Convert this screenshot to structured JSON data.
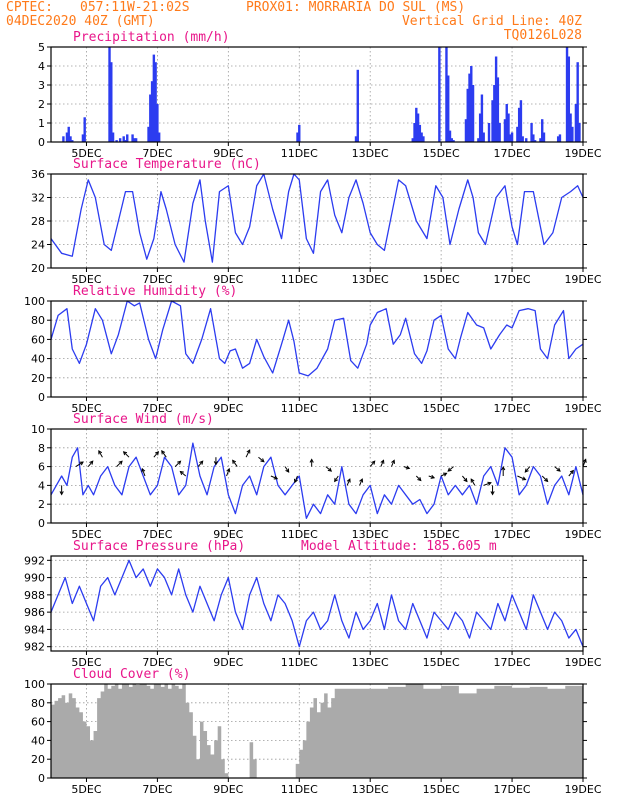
{
  "header": {
    "line1_left": "CPTEC:",
    "line1_coords": "057:11W-21:02S",
    "line1_station": "PROX01: MORRARIA DO SUL (MS)",
    "line2_left": "04DEC2020 40Z (GMT)",
    "line2_right": "Vertical Grid Line: 40Z",
    "line3_right": "TQ0126L028",
    "color": "#ff7a1a"
  },
  "colors": {
    "title": "#e8168a",
    "line": "#2c3cf0",
    "bar": "#2c3cf0",
    "cloud": "#aaaaaa",
    "arrow": "#000000",
    "grid": "#9a9a9a"
  },
  "chart_data": [
    {
      "panel": "precipitation",
      "type": "bar",
      "title": "Precipitation (mm/h)",
      "x_tick_labels": [
        "5DEC",
        "7DEC",
        "9DEC",
        "11DEC",
        "13DEC",
        "15DEC",
        "17DEC",
        "19DEC"
      ],
      "ylim": [
        0,
        5
      ],
      "yticks": [
        0,
        1,
        2,
        3,
        4,
        5
      ],
      "grid": true,
      "x": [
        4.35,
        4.45,
        4.5,
        4.55,
        4.6,
        4.9,
        4.95,
        5.65,
        5.7,
        5.75,
        5.85,
        5.95,
        6.05,
        6.1,
        6.15,
        6.3,
        6.35,
        6.4,
        6.75,
        6.8,
        6.85,
        6.9,
        6.95,
        7.0,
        7.05,
        10.95,
        11.0,
        12.6,
        12.65,
        14.2,
        14.25,
        14.3,
        14.35,
        14.4,
        14.45,
        14.5,
        14.95,
        15.15,
        15.2,
        15.25,
        15.3,
        15.35,
        15.7,
        15.75,
        15.8,
        15.85,
        15.9,
        16.05,
        16.1,
        16.15,
        16.2,
        16.35,
        16.45,
        16.5,
        16.55,
        16.6,
        16.65,
        16.8,
        16.85,
        16.9,
        16.95,
        17.0,
        17.15,
        17.2,
        17.25,
        17.3,
        17.4,
        17.55,
        17.6,
        17.65,
        17.8,
        17.85,
        17.9,
        18.3,
        18.35,
        18.55,
        18.6,
        18.65,
        18.7,
        18.8,
        18.85,
        18.9
      ],
      "values": [
        0.3,
        0.5,
        0.8,
        0.3,
        0.1,
        0.4,
        1.3,
        5.0,
        4.2,
        0.5,
        0.1,
        0.2,
        0.3,
        0.1,
        0.4,
        0.4,
        0.2,
        0.2,
        0.8,
        2.5,
        3.2,
        4.6,
        4.2,
        2.0,
        0.5,
        0.5,
        0.9,
        0.3,
        3.8,
        0.2,
        1.0,
        1.8,
        1.5,
        0.9,
        0.5,
        0.3,
        5.0,
        5.0,
        3.5,
        0.6,
        0.2,
        0.1,
        1.2,
        2.8,
        3.6,
        4.0,
        3.0,
        0.2,
        1.5,
        2.5,
        0.5,
        1.0,
        2.2,
        3.0,
        4.5,
        3.4,
        1.0,
        1.2,
        2.0,
        1.5,
        0.4,
        0.5,
        0.8,
        1.8,
        2.2,
        0.3,
        0.2,
        1.0,
        0.4,
        0.1,
        0.2,
        1.2,
        0.5,
        0.3,
        0.4,
        5.0,
        4.5,
        1.5,
        0.8,
        2.0,
        4.2,
        1.0
      ]
    },
    {
      "panel": "temperature",
      "type": "line",
      "title": "Surface Temperature (nC)",
      "x_tick_labels": [
        "5DEC",
        "7DEC",
        "9DEC",
        "11DEC",
        "13DEC",
        "15DEC",
        "17DEC",
        "19DEC"
      ],
      "ylim": [
        20,
        36
      ],
      "yticks": [
        20,
        24,
        28,
        32,
        36
      ],
      "grid": true,
      "x": [
        4.0,
        4.3,
        4.6,
        4.85,
        5.05,
        5.25,
        5.5,
        5.7,
        5.9,
        6.1,
        6.3,
        6.5,
        6.7,
        6.9,
        7.1,
        7.25,
        7.5,
        7.75,
        8.0,
        8.2,
        8.35,
        8.55,
        8.75,
        9.0,
        9.2,
        9.4,
        9.6,
        9.8,
        10.0,
        10.25,
        10.5,
        10.7,
        10.85,
        11.0,
        11.2,
        11.4,
        11.6,
        11.8,
        12.0,
        12.2,
        12.4,
        12.6,
        12.8,
        13.0,
        13.2,
        13.4,
        13.6,
        13.8,
        14.0,
        14.3,
        14.6,
        14.85,
        15.05,
        15.25,
        15.5,
        15.75,
        15.9,
        16.05,
        16.25,
        16.55,
        16.8,
        17.0,
        17.15,
        17.35,
        17.6,
        17.9,
        18.15,
        18.4,
        18.65,
        18.85,
        19.0
      ],
      "values": [
        25,
        22.5,
        22,
        30,
        35,
        32,
        24,
        23,
        28,
        33,
        33,
        26,
        21.5,
        25,
        33,
        30,
        24,
        21,
        31,
        35,
        28,
        21,
        33,
        34,
        26,
        24,
        27,
        34,
        36,
        30,
        25,
        33,
        36,
        35,
        25,
        22.5,
        33,
        35,
        29,
        26,
        32,
        35,
        31,
        26,
        24,
        23,
        29,
        35,
        34,
        28,
        25,
        34,
        32,
        24,
        30,
        35,
        32,
        26,
        24,
        32,
        34,
        27,
        24,
        33,
        33,
        24,
        26,
        32,
        33,
        34,
        32
      ]
    },
    {
      "panel": "humidity",
      "type": "line",
      "title": "Relative Humidity (%)",
      "x_tick_labels": [
        "5DEC",
        "7DEC",
        "9DEC",
        "11DEC",
        "13DEC",
        "15DEC",
        "17DEC",
        "19DEC"
      ],
      "ylim": [
        0,
        100
      ],
      "yticks": [
        0,
        20,
        40,
        60,
        80,
        100
      ],
      "grid": true,
      "x": [
        4.0,
        4.2,
        4.45,
        4.6,
        4.8,
        5.0,
        5.25,
        5.45,
        5.7,
        5.9,
        6.15,
        6.35,
        6.5,
        6.75,
        6.95,
        7.15,
        7.4,
        7.65,
        7.8,
        8.0,
        8.25,
        8.5,
        8.75,
        8.9,
        9.05,
        9.2,
        9.4,
        9.6,
        9.8,
        10.0,
        10.25,
        10.5,
        10.7,
        10.85,
        11.0,
        11.25,
        11.5,
        11.65,
        11.8,
        12.0,
        12.25,
        12.45,
        12.65,
        12.9,
        13.0,
        13.2,
        13.45,
        13.65,
        13.85,
        14.0,
        14.25,
        14.45,
        14.6,
        14.8,
        15.0,
        15.2,
        15.4,
        15.55,
        15.75,
        16.0,
        16.2,
        16.4,
        16.65,
        16.85,
        17.0,
        17.2,
        17.45,
        17.65,
        17.8,
        18.0,
        18.2,
        18.45,
        18.6,
        18.8,
        19.0
      ],
      "values": [
        60,
        85,
        92,
        50,
        35,
        55,
        92,
        80,
        45,
        65,
        100,
        95,
        98,
        60,
        40,
        70,
        100,
        95,
        45,
        35,
        60,
        92,
        40,
        35,
        48,
        50,
        30,
        35,
        60,
        42,
        25,
        55,
        80,
        58,
        25,
        22,
        30,
        40,
        50,
        80,
        82,
        38,
        30,
        55,
        75,
        88,
        92,
        55,
        65,
        82,
        45,
        35,
        48,
        80,
        85,
        50,
        40,
        62,
        88,
        75,
        72,
        50,
        65,
        75,
        72,
        90,
        92,
        90,
        50,
        40,
        75,
        90,
        40,
        50,
        55
      ]
    },
    {
      "panel": "wind",
      "type": "line",
      "title": "Surface Wind (m/s)",
      "x_tick_labels": [
        "5DEC",
        "7DEC",
        "9DEC",
        "11DEC",
        "13DEC",
        "15DEC",
        "17DEC",
        "19DEC"
      ],
      "ylim": [
        0,
        10
      ],
      "yticks": [
        0,
        2,
        4,
        6,
        8,
        10
      ],
      "grid": true,
      "x": [
        4.0,
        4.15,
        4.3,
        4.45,
        4.6,
        4.75,
        4.9,
        5.05,
        5.2,
        5.4,
        5.6,
        5.8,
        6.0,
        6.2,
        6.4,
        6.6,
        6.8,
        7.0,
        7.2,
        7.4,
        7.6,
        7.8,
        8.0,
        8.2,
        8.4,
        8.6,
        8.8,
        9.0,
        9.2,
        9.4,
        9.6,
        9.8,
        10.0,
        10.2,
        10.4,
        10.6,
        10.8,
        11.0,
        11.2,
        11.4,
        11.6,
        11.8,
        12.0,
        12.2,
        12.4,
        12.6,
        12.8,
        13.0,
        13.2,
        13.4,
        13.6,
        13.8,
        14.0,
        14.2,
        14.4,
        14.6,
        14.8,
        15.0,
        15.2,
        15.4,
        15.6,
        15.8,
        16.0,
        16.2,
        16.4,
        16.6,
        16.8,
        17.0,
        17.2,
        17.4,
        17.6,
        17.8,
        18.0,
        18.2,
        18.4,
        18.6,
        18.8,
        19.0
      ],
      "values": [
        3,
        4,
        5,
        4,
        7,
        8,
        3,
        4,
        3,
        5,
        6,
        4,
        3,
        6,
        7,
        5,
        3,
        4,
        7,
        6,
        3,
        4,
        8.5,
        5,
        3,
        6,
        7,
        3,
        1,
        4,
        5,
        3,
        6,
        7,
        4,
        3,
        4,
        5,
        0.5,
        2,
        1,
        3,
        2,
        6,
        2,
        1,
        3,
        4,
        1,
        3,
        2,
        4,
        3,
        2,
        2.5,
        1,
        2,
        5,
        3,
        4,
        3,
        4,
        2,
        5,
        6,
        4,
        8,
        7,
        3,
        4,
        6,
        5,
        2,
        4,
        5,
        3,
        6,
        3
      ],
      "arrows_x": [
        4.3,
        4.7,
        5.05,
        5.45,
        5.85,
        6.2,
        6.65,
        6.9,
        7.25,
        7.5,
        7.8,
        8.15,
        8.65,
        8.95,
        9.25,
        9.5,
        9.85,
        10.2,
        10.6,
        10.95,
        11.35,
        11.75,
        12.1,
        12.35,
        12.7,
        13.0,
        13.3,
        13.6,
        13.95,
        14.3,
        14.65,
        15.0,
        15.35,
        15.6,
        15.95,
        16.2,
        16.45,
        16.75,
        17.15,
        17.5,
        17.85,
        18.2,
        18.6,
        19.0
      ],
      "arrows_y": [
        4,
        6,
        6,
        7,
        6,
        7,
        5,
        7,
        7,
        6,
        5,
        6,
        7,
        5,
        6,
        7,
        7,
        5,
        6,
        5,
        6,
        6,
        5,
        4,
        4,
        6,
        6,
        6,
        6,
        5,
        5,
        5,
        6,
        5,
        4,
        4,
        4,
        5,
        5,
        6,
        5,
        6,
        5,
        6
      ],
      "arrows_u": [
        0,
        0.8,
        0.5,
        -0.4,
        0.6,
        -0.6,
        -0.3,
        0.5,
        -0.5,
        0.6,
        -0.6,
        0.5,
        0,
        0.3,
        -0.5,
        0.4,
        0.6,
        0.7,
        0.4,
        -0.3,
        0,
        0.6,
        -0.4,
        0.3,
        0.3,
        0.5,
        0.3,
        0.3,
        0.6,
        0.5,
        0.6,
        0.6,
        -0.6,
        0.5,
        -0.4,
        0.8,
        0,
        0,
        0.9,
        -0.5,
        0.6,
        0.6,
        0.5,
        0.3
      ],
      "arrows_v": [
        -1,
        0.5,
        0.6,
        0.7,
        0.6,
        0.6,
        0.8,
        0.6,
        0.7,
        0.6,
        0.5,
        0.6,
        -0.8,
        0.8,
        0.7,
        0.8,
        -0.5,
        -0.3,
        -0.6,
        -0.7,
        0.8,
        -0.5,
        -0.6,
        0.7,
        0.7,
        0.6,
        0.7,
        0.7,
        -0.2,
        -0.5,
        -0.2,
        0.3,
        -0.5,
        -0.6,
        0.7,
        0.3,
        -1,
        1,
        -0.4,
        -0.6,
        -0.6,
        -0.5,
        0.6,
        0.8
      ]
    },
    {
      "panel": "pressure",
      "type": "line",
      "title": "Surface Pressure (hPa)",
      "annotation": "Model Altitude: 185.605 m",
      "x_tick_labels": [
        "5DEC",
        "7DEC",
        "9DEC",
        "11DEC",
        "13DEC",
        "15DEC",
        "17DEC",
        "19DEC"
      ],
      "ylim": [
        981.5,
        992.5
      ],
      "yticks": [
        982,
        984,
        986,
        988,
        990,
        992
      ],
      "grid": true,
      "x": [
        4.0,
        4.2,
        4.4,
        4.6,
        4.8,
        5.0,
        5.2,
        5.4,
        5.6,
        5.8,
        6.0,
        6.2,
        6.4,
        6.6,
        6.8,
        7.0,
        7.2,
        7.4,
        7.6,
        7.8,
        8.0,
        8.2,
        8.4,
        8.6,
        8.8,
        9.0,
        9.2,
        9.4,
        9.6,
        9.8,
        10.0,
        10.2,
        10.4,
        10.6,
        10.8,
        11.0,
        11.2,
        11.4,
        11.6,
        11.8,
        12.0,
        12.2,
        12.4,
        12.6,
        12.8,
        13.0,
        13.2,
        13.4,
        13.6,
        13.8,
        14.0,
        14.2,
        14.4,
        14.6,
        14.8,
        15.0,
        15.2,
        15.4,
        15.6,
        15.8,
        16.0,
        16.2,
        16.4,
        16.6,
        16.8,
        17.0,
        17.2,
        17.4,
        17.6,
        17.8,
        18.0,
        18.2,
        18.4,
        18.6,
        18.8,
        19.0
      ],
      "values": [
        986,
        988,
        990,
        987,
        989,
        987,
        985,
        989,
        990,
        988,
        990,
        992,
        990,
        991,
        989,
        991,
        990,
        988,
        991,
        988,
        986,
        989,
        987,
        985,
        988,
        990,
        986,
        984,
        988,
        990,
        987,
        985,
        988,
        987,
        985,
        982,
        985,
        986,
        984,
        985,
        988,
        985,
        983,
        986,
        984,
        985,
        987,
        984,
        988,
        985,
        984,
        987,
        985,
        983,
        986,
        985,
        984,
        986,
        985,
        983,
        986,
        985,
        984,
        987,
        985,
        988,
        986,
        984,
        988,
        986,
        984,
        986,
        985,
        983,
        984,
        982
      ]
    },
    {
      "panel": "cloud",
      "type": "area",
      "title": "Cloud Cover (%)",
      "x_tick_labels": [
        "5DEC",
        "7DEC",
        "9DEC",
        "11DEC",
        "13DEC",
        "15DEC",
        "17DEC",
        "19DEC"
      ],
      "ylim": [
        0,
        100
      ],
      "yticks": [
        0,
        20,
        40,
        60,
        80,
        100
      ],
      "grid": true,
      "x": [
        4.0,
        4.1,
        4.2,
        4.3,
        4.4,
        4.5,
        4.6,
        4.7,
        4.8,
        4.9,
        5.0,
        5.1,
        5.2,
        5.3,
        5.4,
        5.5,
        5.6,
        5.7,
        5.8,
        5.9,
        6.0,
        6.1,
        6.2,
        6.3,
        6.4,
        6.5,
        6.6,
        6.7,
        6.8,
        6.9,
        7.0,
        7.1,
        7.2,
        7.3,
        7.4,
        7.5,
        7.6,
        7.7,
        7.8,
        7.9,
        8.0,
        8.1,
        8.2,
        8.3,
        8.4,
        8.5,
        8.6,
        8.7,
        8.8,
        8.9,
        9.0,
        9.1,
        9.2,
        9.3,
        9.4,
        9.5,
        9.6,
        9.7,
        9.8,
        9.9,
        10.0,
        10.1,
        10.2,
        10.3,
        10.4,
        10.5,
        10.6,
        10.7,
        10.8,
        10.9,
        11.0,
        11.1,
        11.2,
        11.3,
        11.4,
        11.5,
        11.6,
        11.7,
        11.8,
        11.9,
        12.0,
        12.5,
        13.0,
        13.5,
        14.0,
        14.5,
        15.0,
        15.5,
        16.0,
        16.5,
        17.0,
        17.5,
        18.0,
        18.5,
        19.0
      ],
      "values": [
        78,
        82,
        85,
        88,
        80,
        90,
        85,
        75,
        70,
        60,
        55,
        40,
        50,
        85,
        92,
        100,
        95,
        98,
        100,
        95,
        100,
        100,
        97,
        100,
        99,
        100,
        100,
        98,
        95,
        100,
        100,
        97,
        100,
        95,
        100,
        98,
        95,
        100,
        80,
        70,
        45,
        20,
        60,
        50,
        35,
        25,
        40,
        55,
        20,
        5,
        0,
        0,
        0,
        0,
        0,
        0,
        38,
        20,
        0,
        0,
        0,
        0,
        0,
        0,
        0,
        0,
        0,
        0,
        0,
        15,
        30,
        40,
        60,
        75,
        85,
        70,
        80,
        90,
        75,
        85,
        95,
        95,
        95,
        97,
        100,
        95,
        98,
        90,
        95,
        98,
        96,
        97,
        95,
        98,
        95
      ]
    }
  ]
}
